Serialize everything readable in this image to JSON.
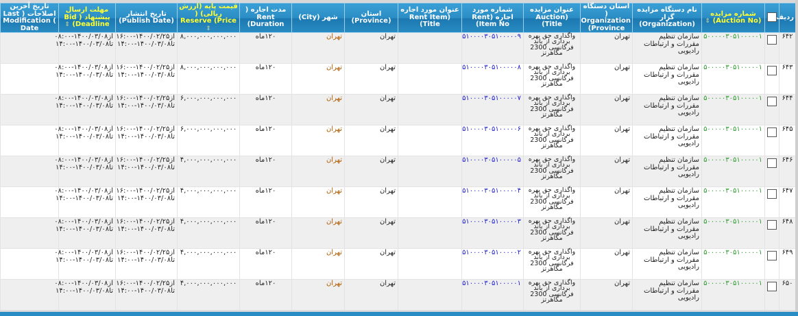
{
  "headers": {
    "row": "ردیف",
    "auction_no": "شماره مزایده (Auction No)",
    "organization": "نام دستگاه مزایده گزار (Organization)",
    "org_province": "استان دستگاه ( Organization (Province",
    "auction_title": "عنوان مزایده (Auction Title)",
    "rent_item_no": "شماره مورد اجاره (Rent Item No)",
    "rent_item_title": "عنوان مورد اجاره (Rent Item Title)",
    "province": "استان (Province)",
    "city": "شهر (City)",
    "duration": "مدت اجاره ( Rent (Duration",
    "price": "قیمت پایه (ارزش ریالی) ( Reserve (Price",
    "publish_date": "تاریخ انتشار (Publish Date)",
    "deadline": "مهلت ارسال پیشنهاد ( Bid (Deadline",
    "last_mod": "تاریخ آخرین اصلاحات ( Last Modification ( Date"
  },
  "rows": [
    {
      "row": "۶۴۲",
      "auction_no": "۵۰۰۰۰۰۳۰۵۱۰۰۰۰۰۱",
      "organization": "سازمان تنظیم مقررات و ارتباطات رادیویی",
      "org_province": "تهران",
      "auction_title": "واگذاری حق بهره برداری از باند فرکانسی 2300 مگاهرتز",
      "rent_item_no": "۵۱۰۰۰۰۳۰۵۱۰۰۰۰۰۹",
      "rent_item_title": "",
      "province": "تهران",
      "city": "تهران",
      "duration": "۱۲۰ماه",
      "price": "۸,۰۰۰,۰۰۰,۰۰۰,۰۰۰",
      "publish_from": "از۱۴۰۰/۰۲/۲۵-۱۶:۰۰",
      "publish_to": "تا۱۴۰۰/۰۳/۰۸-۱۴:۰۰",
      "deadline_from": "از۱۴۰۰/۰۳/۰۸-۰۸:۰۰",
      "deadline_to": "تا۱۴۰۰/۰۳/۰۸-۱۴:۰۰",
      "last_mod": ""
    },
    {
      "row": "۶۴۳",
      "auction_no": "۵۰۰۰۰۰۳۰۵۱۰۰۰۰۰۱",
      "organization": "سازمان تنظیم مقررات و ارتباطات رادیویی",
      "org_province": "تهران",
      "auction_title": "واگذاری حق بهره برداری از باند فرکانسی 2300 مگاهرتز",
      "rent_item_no": "۵۱۰۰۰۰۳۰۵۱۰۰۰۰۰۸",
      "rent_item_title": "",
      "province": "تهران",
      "city": "تهران",
      "duration": "۱۲۰ماه",
      "price": "۸,۰۰۰,۰۰۰,۰۰۰,۰۰۰",
      "publish_from": "از۱۴۰۰/۰۲/۲۵-۱۶:۰۰",
      "publish_to": "تا۱۴۰۰/۰۳/۰۸-۱۴:۰۰",
      "deadline_from": "از۱۴۰۰/۰۳/۰۸-۰۸:۰۰",
      "deadline_to": "تا۱۴۰۰/۰۳/۰۸-۱۴:۰۰",
      "last_mod": ""
    },
    {
      "row": "۶۴۴",
      "auction_no": "۵۰۰۰۰۰۳۰۵۱۰۰۰۰۰۱",
      "organization": "سازمان تنظیم مقررات و ارتباطات رادیویی",
      "org_province": "تهران",
      "auction_title": "واگذاری حق بهره برداری از باند فرکانسی 2300 مگاهرتز",
      "rent_item_no": "۵۱۰۰۰۰۳۰۵۱۰۰۰۰۰۷",
      "rent_item_title": "",
      "province": "تهران",
      "city": "تهران",
      "duration": "۱۲۰ماه",
      "price": "۶,۰۰۰,۰۰۰,۰۰۰,۰۰۰",
      "publish_from": "از۱۴۰۰/۰۲/۲۵-۱۶:۰۰",
      "publish_to": "تا۱۴۰۰/۰۳/۰۸-۱۴:۰۰",
      "deadline_from": "از۱۴۰۰/۰۳/۰۸-۰۸:۰۰",
      "deadline_to": "تا۱۴۰۰/۰۳/۰۸-۱۴:۰۰",
      "last_mod": ""
    },
    {
      "row": "۶۴۵",
      "auction_no": "۵۰۰۰۰۰۳۰۵۱۰۰۰۰۰۱",
      "organization": "سازمان تنظیم مقررات و ارتباطات رادیویی",
      "org_province": "تهران",
      "auction_title": "واگذاری حق بهره برداری از باند فرکانسی 2300 مگاهرتز",
      "rent_item_no": "۵۱۰۰۰۰۳۰۵۱۰۰۰۰۰۶",
      "rent_item_title": "",
      "province": "تهران",
      "city": "تهران",
      "duration": "۱۲۰ماه",
      "price": "۶,۰۰۰,۰۰۰,۰۰۰,۰۰۰",
      "publish_from": "از۱۴۰۰/۰۲/۲۵-۱۶:۰۰",
      "publish_to": "تا۱۴۰۰/۰۳/۰۸-۱۴:۰۰",
      "deadline_from": "از۱۴۰۰/۰۳/۰۸-۰۸:۰۰",
      "deadline_to": "تا۱۴۰۰/۰۳/۰۸-۱۴:۰۰",
      "last_mod": ""
    },
    {
      "row": "۶۴۶",
      "auction_no": "۵۰۰۰۰۰۳۰۵۱۰۰۰۰۰۱",
      "organization": "سازمان تنظیم مقررات و ارتباطات رادیویی",
      "org_province": "تهران",
      "auction_title": "واگذاری حق بهره برداری از باند فرکانسی 2300 مگاهرتز",
      "rent_item_no": "۵۱۰۰۰۰۳۰۵۱۰۰۰۰۰۵",
      "rent_item_title": "",
      "province": "تهران",
      "city": "تهران",
      "duration": "۱۲۰ماه",
      "price": "۴,۰۰۰,۰۰۰,۰۰۰,۰۰۰",
      "publish_from": "از۱۴۰۰/۰۲/۲۵-۱۶:۰۰",
      "publish_to": "تا۱۴۰۰/۰۳/۰۸-۱۴:۰۰",
      "deadline_from": "از۱۴۰۰/۰۳/۰۸-۰۸:۰۰",
      "deadline_to": "تا۱۴۰۰/۰۳/۰۸-۱۴:۰۰",
      "last_mod": ""
    },
    {
      "row": "۶۴۷",
      "auction_no": "۵۰۰۰۰۰۳۰۵۱۰۰۰۰۰۱",
      "organization": "سازمان تنظیم مقررات و ارتباطات رادیویی",
      "org_province": "تهران",
      "auction_title": "واگذاری حق بهره برداری از باند فرکانسی 2300 مگاهرتز",
      "rent_item_no": "۵۱۰۰۰۰۳۰۵۱۰۰۰۰۰۴",
      "rent_item_title": "",
      "province": "تهران",
      "city": "تهران",
      "duration": "۱۲۰ماه",
      "price": "۴,۰۰۰,۰۰۰,۰۰۰,۰۰۰",
      "publish_from": "از۱۴۰۰/۰۲/۲۵-۱۶:۰۰",
      "publish_to": "تا۱۴۰۰/۰۳/۰۸-۱۴:۰۰",
      "deadline_from": "از۱۴۰۰/۰۳/۰۸-۰۸:۰۰",
      "deadline_to": "تا۱۴۰۰/۰۳/۰۸-۱۴:۰۰",
      "last_mod": ""
    },
    {
      "row": "۶۴۸",
      "auction_no": "۵۰۰۰۰۰۳۰۵۱۰۰۰۰۰۱",
      "organization": "سازمان تنظیم مقررات و ارتباطات رادیویی",
      "org_province": "تهران",
      "auction_title": "واگذاری حق بهره برداری از باند فرکانسی 2300 مگاهرتز",
      "rent_item_no": "۵۱۰۰۰۰۳۰۵۱۰۰۰۰۰۳",
      "rent_item_title": "",
      "province": "تهران",
      "city": "تهران",
      "duration": "۱۲۰ماه",
      "price": "۴,۰۰۰,۰۰۰,۰۰۰,۰۰۰",
      "publish_from": "از۱۴۰۰/۰۲/۲۵-۱۶:۰۰",
      "publish_to": "تا۱۴۰۰/۰۳/۰۸-۱۴:۰۰",
      "deadline_from": "از۱۴۰۰/۰۳/۰۸-۰۸:۰۰",
      "deadline_to": "تا۱۴۰۰/۰۳/۰۸-۱۴:۰۰",
      "last_mod": ""
    },
    {
      "row": "۶۴۹",
      "auction_no": "۵۰۰۰۰۰۳۰۵۱۰۰۰۰۰۱",
      "organization": "سازمان تنظیم مقررات و ارتباطات رادیویی",
      "org_province": "تهران",
      "auction_title": "واگذاری حق بهره برداری از باند فرکانسی 2300 مگاهرتز",
      "rent_item_no": "۵۱۰۰۰۰۳۰۵۱۰۰۰۰۰۲",
      "rent_item_title": "",
      "province": "تهران",
      "city": "تهران",
      "duration": "۱۲۰ماه",
      "price": "۴,۰۰۰,۰۰۰,۰۰۰,۰۰۰",
      "publish_from": "از۱۴۰۰/۰۲/۲۵-۱۶:۰۰",
      "publish_to": "تا۱۴۰۰/۰۳/۰۸-۱۴:۰۰",
      "deadline_from": "از۱۴۰۰/۰۳/۰۸-۰۸:۰۰",
      "deadline_to": "تا۱۴۰۰/۰۳/۰۸-۱۴:۰۰",
      "last_mod": ""
    },
    {
      "row": "۶۵۰",
      "auction_no": "۵۰۰۰۰۰۳۰۵۱۰۰۰۰۰۱",
      "organization": "سازمان تنظیم مقررات و ارتباطات رادیویی",
      "org_province": "تهران",
      "auction_title": "واگذاری حق بهره برداری از باند فرکانسی 2300 مگاهرتز",
      "rent_item_no": "۵۱۰۰۰۰۳۰۵۱۰۰۰۰۰۱",
      "rent_item_title": "",
      "province": "تهران",
      "city": "تهران",
      "duration": "۱۲۰ماه",
      "price": "۴,۰۰۰,۰۰۰,۰۰۰,۰۰۰",
      "publish_from": "از۱۴۰۰/۰۲/۲۵-۱۶:۰۰",
      "publish_to": "تا۱۴۰۰/۰۳/۰۸-۱۴:۰۰",
      "deadline_from": "از۱۴۰۰/۰۳/۰۸-۰۸:۰۰",
      "deadline_to": "تا۱۴۰۰/۰۳/۰۸-۱۴:۰۰",
      "last_mod": ""
    }
  ],
  "colors": {
    "header": "#2a8cc4",
    "sortable_header": "#ffff33",
    "auction_no": "#2e9a2e",
    "rent_item_no": "#2020d0",
    "city": "#b05a00"
  }
}
